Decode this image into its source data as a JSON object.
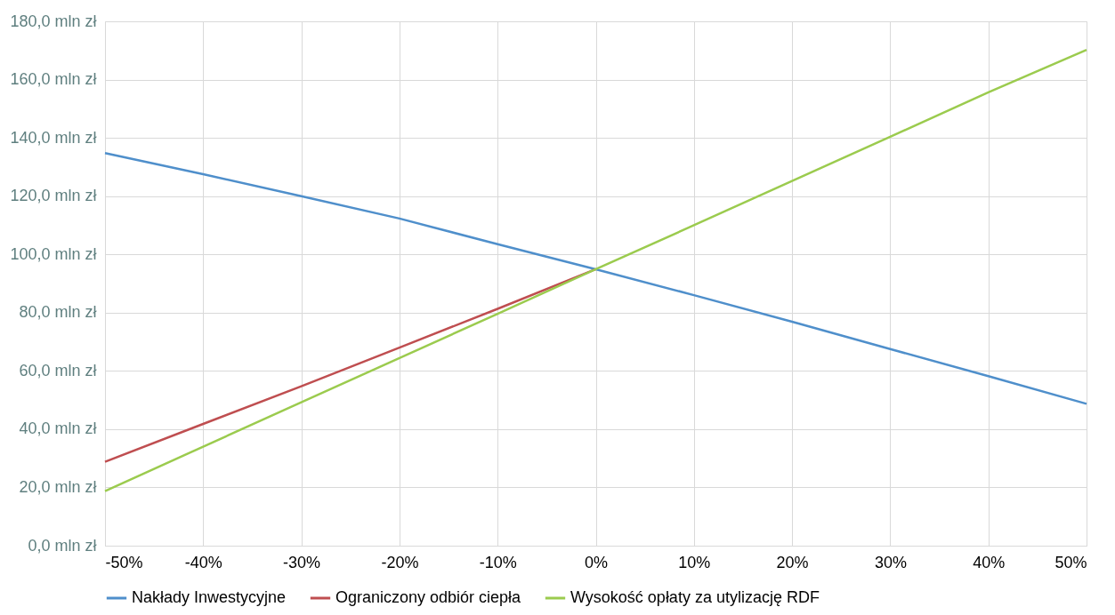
{
  "chart_data": {
    "type": "line",
    "x": [
      -50,
      -40,
      -30,
      -20,
      -10,
      0,
      10,
      20,
      30,
      40,
      50
    ],
    "series": [
      {
        "name": "Nakłady Inwestycyjne",
        "color": "#4f8fcb",
        "values": [
          134.8,
          127.5,
          120,
          112.3,
          103.5,
          94.9,
          86,
          76.9,
          67.5,
          58.2,
          48.7
        ]
      },
      {
        "name": "Ograniczony odbiór ciepła",
        "color": "#bf4e50",
        "values": [
          28.8,
          41.8,
          54.7,
          68,
          81.3,
          94.9,
          null,
          null,
          null,
          null,
          null
        ]
      },
      {
        "name": "Wysokość opłaty za utylizację RDF",
        "color": "#9bcb4e",
        "values": [
          18.7,
          34,
          49.2,
          64.4,
          79.6,
          94.9,
          110,
          125.2,
          140.4,
          155.6,
          170.2
        ]
      }
    ],
    "xlim": [
      -50,
      50
    ],
    "xticks": [
      {
        "value": -50,
        "label": "-50%"
      },
      {
        "value": -40,
        "label": "-40%"
      },
      {
        "value": -30,
        "label": "-30%"
      },
      {
        "value": -20,
        "label": "-20%"
      },
      {
        "value": -10,
        "label": "-10%"
      },
      {
        "value": 0,
        "label": "0%"
      },
      {
        "value": 10,
        "label": "10%"
      },
      {
        "value": 20,
        "label": "20%"
      },
      {
        "value": 30,
        "label": "30%"
      },
      {
        "value": 40,
        "label": "40%"
      },
      {
        "value": 50,
        "label": "50%"
      }
    ],
    "ylim": [
      0,
      180
    ],
    "yticks": [
      {
        "value": 0,
        "label": "0,0  mln zł"
      },
      {
        "value": 20,
        "label": "20,0  mln zł"
      },
      {
        "value": 40,
        "label": "40,0  mln zł"
      },
      {
        "value": 60,
        "label": "60,0  mln zł"
      },
      {
        "value": 80,
        "label": "80,0  mln zł"
      },
      {
        "value": 100,
        "label": "100,0  mln zł"
      },
      {
        "value": 120,
        "label": "120,0  mln zł"
      },
      {
        "value": 140,
        "label": "140,0  mln zł"
      },
      {
        "value": 160,
        "label": "160,0  mln zł"
      },
      {
        "value": 180,
        "label": "180,0  mln zł"
      }
    ],
    "grid": true,
    "legend": "bottom",
    "marker": "none",
    "line_style": "solid"
  }
}
